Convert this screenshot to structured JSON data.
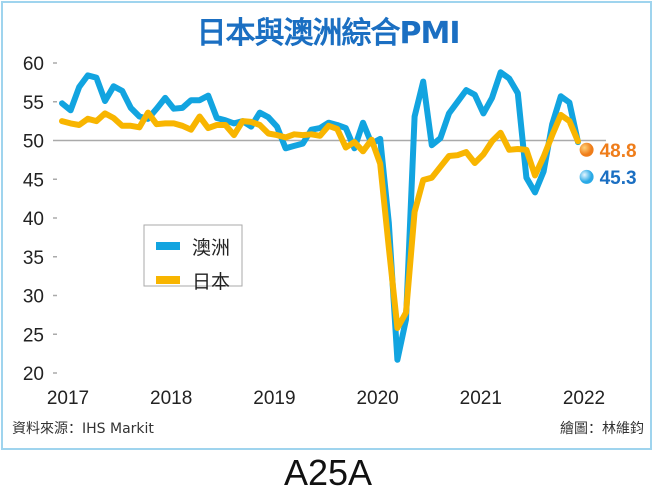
{
  "chart_data": {
    "type": "line",
    "title": "日本與澳洲綜合PMI",
    "xlabel": "",
    "ylabel": "",
    "x_start": "2017-01",
    "x_end": "2022-02",
    "x_ticks": [
      "2017",
      "2018",
      "2019",
      "2020",
      "2021",
      "2022"
    ],
    "y_ticks": [
      60,
      55,
      50,
      45,
      40,
      35,
      30,
      25,
      20
    ],
    "ylim": [
      20,
      60
    ],
    "reference_line": 50,
    "grid": false,
    "legend_placement": "center-left",
    "series": [
      {
        "name": "澳洲",
        "color": "#12a4e0",
        "values": [
          54.8,
          53.9,
          56.9,
          58.4,
          58.1,
          55.1,
          57.0,
          56.4,
          54.2,
          53.1,
          52.8,
          54.1,
          55.5,
          54.1,
          54.2,
          55.2,
          55.2,
          55.8,
          52.9,
          52.6,
          52.2,
          52.5,
          51.8,
          53.6,
          53.0,
          51.8,
          49.0,
          49.3,
          49.6,
          51.4,
          51.6,
          52.3,
          52.0,
          51.6,
          49.0,
          52.3,
          49.6,
          50.2,
          39.4,
          21.7,
          26.9,
          53.1,
          57.6,
          49.4,
          50.3,
          53.5,
          55.0,
          56.5,
          55.9,
          53.5,
          55.5,
          58.8,
          58.0,
          56.1,
          45.2,
          43.3,
          46.0,
          52.1,
          55.7,
          54.9,
          49.8,
          45.3
        ]
      },
      {
        "name": "日本",
        "color": "#f8b500",
        "values": [
          52.5,
          52.2,
          52.0,
          52.8,
          52.5,
          53.5,
          52.9,
          51.9,
          51.9,
          51.7,
          53.6,
          52.1,
          52.2,
          52.2,
          51.9,
          51.4,
          53.1,
          51.6,
          52.0,
          52.0,
          50.7,
          52.5,
          52.4,
          52.0,
          50.9,
          50.7,
          50.4,
          50.8,
          50.7,
          50.8,
          50.6,
          51.9,
          51.5,
          49.1,
          49.8,
          48.6,
          50.1,
          47.0,
          36.2,
          25.8,
          27.8,
          40.8,
          44.9,
          45.2,
          46.6,
          48.0,
          48.1,
          48.5,
          47.1,
          48.2,
          49.9,
          51.0,
          48.8,
          48.9,
          48.8,
          45.5,
          47.9,
          50.7,
          53.3,
          52.5,
          49.9,
          48.8
        ]
      }
    ],
    "annotations": [
      {
        "series": "日本",
        "label": "48.8",
        "color": "#ef7d1a"
      },
      {
        "series": "澳洲",
        "label": "45.3",
        "color": "#1b6fc2"
      }
    ]
  },
  "footer": {
    "source": "資料來源：IHS Markit",
    "credit": "繪圖：林維鈞"
  },
  "page_label": "A25A"
}
